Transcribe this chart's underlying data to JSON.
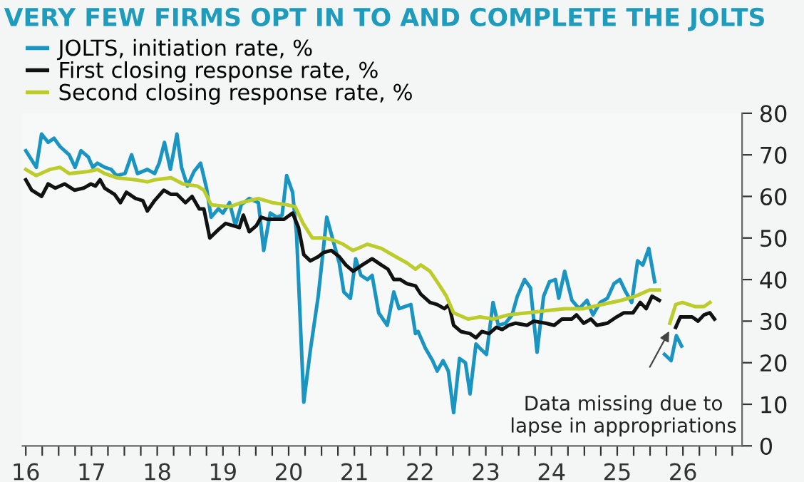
{
  "chart_data": {
    "type": "line",
    "title": "VERY FEW FIRMS OPT IN TO AND COMPLETE THE JOLTS",
    "series": [
      {
        "name": "JOLTS, initiation rate, %",
        "color": "#1a94c0",
        "x": [
          2016.0,
          2016.16,
          2016.24,
          2016.34,
          2016.43,
          2016.52,
          2016.66,
          2016.75,
          2016.84,
          2016.95,
          2017.02,
          2017.09,
          2017.2,
          2017.3,
          2017.38,
          2017.51,
          2017.61,
          2017.7,
          2017.85,
          2017.96,
          2018.03,
          2018.11,
          2018.2,
          2018.3,
          2018.37,
          2018.46,
          2018.56,
          2018.66,
          2018.75,
          2018.82,
          2018.93,
          2019.0,
          2019.1,
          2019.19,
          2019.28,
          2019.4,
          2019.54,
          2019.62,
          2019.72,
          2019.82,
          2019.9,
          2019.97,
          2020.06,
          2020.12,
          2020.23,
          2020.33,
          2020.45,
          2020.58,
          2020.7,
          2020.77,
          2020.84,
          2020.94,
          2021.02,
          2021.1,
          2021.2,
          2021.27,
          2021.37,
          2021.5,
          2021.6,
          2021.68,
          2021.86,
          2021.93,
          2021.97,
          2022.08,
          2022.19,
          2022.26,
          2022.35,
          2022.43,
          2022.51,
          2022.6,
          2022.69,
          2022.76,
          2022.85,
          2022.94,
          2023.01,
          2023.11,
          2023.19,
          2023.3,
          2023.4,
          2023.48,
          2023.59,
          2023.68,
          2023.78,
          2023.88,
          2023.97,
          2024.06,
          2024.11,
          2024.2,
          2024.31,
          2024.42,
          2024.54,
          2024.63,
          2024.74,
          2024.85,
          2024.95,
          2025.04,
          2025.13,
          2025.22,
          2025.31,
          2025.39,
          2025.48,
          2025.57,
          2025.66,
          2025.72,
          2025.82,
          2025.9,
          2025.98
        ],
        "values": [
          71,
          67,
          75,
          73,
          74,
          72,
          70,
          67,
          71,
          69.5,
          67,
          68,
          67,
          66.5,
          65,
          65.5,
          70,
          65.5,
          66.5,
          65.5,
          68,
          73,
          66.5,
          75,
          67,
          62.5,
          66,
          68,
          62,
          55,
          57,
          56,
          58.5,
          53,
          58,
          59.5,
          58.5,
          47,
          56,
          55,
          55.5,
          65,
          61,
          51,
          10.5,
          23,
          36,
          55,
          48,
          44,
          37,
          35.5,
          45,
          41,
          40,
          41,
          32,
          29,
          37,
          33,
          34,
          27,
          27.5,
          23.5,
          20.5,
          18,
          20.5,
          18,
          8,
          21,
          20,
          12.5,
          24.5,
          23,
          22,
          34.5,
          29,
          29.5,
          31.5,
          36,
          40,
          38,
          22.5,
          36,
          39.5,
          40,
          35.5,
          42,
          35,
          33,
          35,
          31.5,
          34.5,
          35.5,
          39,
          40,
          37,
          34.5,
          44.5,
          43.5,
          47.5,
          39.5,
          null,
          22,
          20.5,
          26.5,
          24
        ]
      },
      {
        "name": "First closing response rate, %",
        "color": "#111111",
        "x": [
          2016.0,
          2016.09,
          2016.24,
          2016.34,
          2016.45,
          2016.59,
          2016.74,
          2016.88,
          2016.99,
          2017.06,
          2017.13,
          2017.2,
          2017.35,
          2017.44,
          2017.53,
          2017.67,
          2017.78,
          2017.85,
          2017.96,
          2018.1,
          2018.21,
          2018.3,
          2018.43,
          2018.53,
          2018.64,
          2018.71,
          2018.8,
          2018.93,
          2019.04,
          2019.15,
          2019.25,
          2019.31,
          2019.4,
          2019.51,
          2019.58,
          2019.68,
          2019.82,
          2019.93,
          2020.06,
          2020.15,
          2020.23,
          2020.33,
          2020.45,
          2020.53,
          2020.65,
          2020.77,
          2020.87,
          2020.98,
          2021.12,
          2021.27,
          2021.41,
          2021.51,
          2021.6,
          2021.7,
          2021.8,
          2021.93,
          2022.01,
          2022.15,
          2022.26,
          2022.37,
          2022.44,
          2022.51,
          2022.62,
          2022.76,
          2022.85,
          2022.94,
          2023.05,
          2023.16,
          2023.25,
          2023.35,
          2023.45,
          2023.63,
          2023.73,
          2023.91,
          2024.04,
          2024.16,
          2024.31,
          2024.38,
          2024.49,
          2024.6,
          2024.69,
          2024.85,
          2024.99,
          2025.1,
          2025.24,
          2025.35,
          2025.44,
          2025.53,
          2025.64,
          2025.76,
          2025.89,
          2025.96,
          2026.14,
          2026.23,
          2026.32,
          2026.41,
          2026.48
        ],
        "values": [
          64,
          61.5,
          60,
          63,
          62,
          63,
          61.5,
          62,
          63,
          62.5,
          64,
          62,
          60.5,
          58.5,
          61,
          59.5,
          59,
          56.5,
          59,
          61.5,
          60.5,
          60.5,
          58.5,
          60,
          57,
          57,
          50,
          52,
          53.5,
          53,
          52.5,
          55.5,
          51.5,
          53,
          55,
          54.5,
          54.5,
          54.5,
          56,
          52.5,
          46,
          44.5,
          45.5,
          46.5,
          47,
          45.5,
          43.5,
          42,
          43.5,
          45,
          43.5,
          42.5,
          40,
          40,
          39,
          38.5,
          36.5,
          34.5,
          34,
          33,
          34,
          29,
          27.5,
          27,
          26,
          27.5,
          27,
          28.5,
          28,
          29,
          29.5,
          29,
          30,
          29.5,
          29,
          30.5,
          30.5,
          31.5,
          29.5,
          30.5,
          29,
          29.5,
          31,
          32,
          32,
          34.5,
          33,
          36,
          35,
          null,
          28.5,
          31,
          31,
          30,
          31.5,
          32,
          30.5
        ]
      },
      {
        "name": "Second closing response rate, %",
        "color": "#bccc2a",
        "x": [
          2016.0,
          2016.16,
          2016.37,
          2016.52,
          2016.66,
          2016.95,
          2017.09,
          2017.2,
          2017.38,
          2017.67,
          2017.85,
          2017.96,
          2018.21,
          2018.39,
          2018.61,
          2018.71,
          2018.82,
          2019.1,
          2019.28,
          2019.54,
          2019.75,
          2019.97,
          2020.1,
          2020.22,
          2020.36,
          2020.54,
          2020.68,
          2020.83,
          2020.98,
          2021.2,
          2021.41,
          2021.63,
          2021.8,
          2021.93,
          2022.01,
          2022.15,
          2022.3,
          2022.4,
          2022.51,
          2022.73,
          2022.91,
          2023.12,
          2023.34,
          2023.63,
          2023.91,
          2024.2,
          2024.49,
          2024.77,
          2025.06,
          2025.28,
          2025.49,
          2025.64,
          2025.72,
          2025.8,
          2025.89,
          2025.99,
          2026.18,
          2026.32,
          2026.41
        ],
        "values": [
          66.5,
          65,
          66.5,
          67,
          65.5,
          66,
          66.5,
          65.5,
          64.5,
          64,
          63.5,
          64,
          64.5,
          63,
          62.5,
          61.5,
          58,
          57.5,
          58.5,
          59.5,
          58.5,
          58,
          57.5,
          53.5,
          50,
          50,
          49.5,
          48.5,
          47,
          48.5,
          47.5,
          45.5,
          44,
          42.5,
          43.5,
          42,
          38.5,
          36,
          32,
          30.5,
          31,
          30.5,
          31.5,
          32,
          32.5,
          33,
          33,
          34,
          35,
          36,
          37.5,
          37.5,
          null,
          29.5,
          34,
          34.5,
          33.5,
          33.5,
          34.5
        ]
      }
    ],
    "xlim": [
      2015.95,
      2026.9
    ],
    "xticks": [
      {
        "value": 2016,
        "label": "16"
      },
      {
        "value": 2016.25,
        "label": null
      },
      {
        "value": 2016.5,
        "label": null
      },
      {
        "value": 2016.75,
        "label": null
      },
      {
        "value": 2017,
        "label": "17"
      },
      {
        "value": 2017.25,
        "label": null
      },
      {
        "value": 2017.5,
        "label": null
      },
      {
        "value": 2017.75,
        "label": null
      },
      {
        "value": 2018,
        "label": "18"
      },
      {
        "value": 2018.25,
        "label": null
      },
      {
        "value": 2018.5,
        "label": null
      },
      {
        "value": 2018.75,
        "label": null
      },
      {
        "value": 2019,
        "label": "19"
      },
      {
        "value": 2019.25,
        "label": null
      },
      {
        "value": 2019.5,
        "label": null
      },
      {
        "value": 2019.75,
        "label": null
      },
      {
        "value": 2020,
        "label": "20"
      },
      {
        "value": 2020.25,
        "label": null
      },
      {
        "value": 2020.5,
        "label": null
      },
      {
        "value": 2020.75,
        "label": null
      },
      {
        "value": 2021,
        "label": "21"
      },
      {
        "value": 2021.25,
        "label": null
      },
      {
        "value": 2021.5,
        "label": null
      },
      {
        "value": 2021.75,
        "label": null
      },
      {
        "value": 2022,
        "label": "22"
      },
      {
        "value": 2022.25,
        "label": null
      },
      {
        "value": 2022.5,
        "label": null
      },
      {
        "value": 2022.75,
        "label": null
      },
      {
        "value": 2023,
        "label": "23"
      },
      {
        "value": 2023.25,
        "label": null
      },
      {
        "value": 2023.5,
        "label": null
      },
      {
        "value": 2023.75,
        "label": null
      },
      {
        "value": 2024,
        "label": "24"
      },
      {
        "value": 2024.25,
        "label": null
      },
      {
        "value": 2024.5,
        "label": null
      },
      {
        "value": 2024.75,
        "label": null
      },
      {
        "value": 2025,
        "label": "25"
      },
      {
        "value": 2025.25,
        "label": null
      },
      {
        "value": 2025.5,
        "label": null
      },
      {
        "value": 2025.75,
        "label": null
      },
      {
        "value": 2026,
        "label": "26"
      },
      {
        "value": 2026.25,
        "label": null
      },
      {
        "value": 2026.5,
        "label": null
      },
      {
        "value": 2026.75,
        "label": null
      }
    ],
    "ylim": [
      0,
      80
    ],
    "yticks": [
      0,
      10,
      20,
      30,
      40,
      50,
      60,
      70,
      80
    ],
    "annotations": [
      "Data missing due to\nlapse in appropriations"
    ],
    "grid": false,
    "legend": "top left",
    "marker": "none",
    "line_style": "solid"
  }
}
